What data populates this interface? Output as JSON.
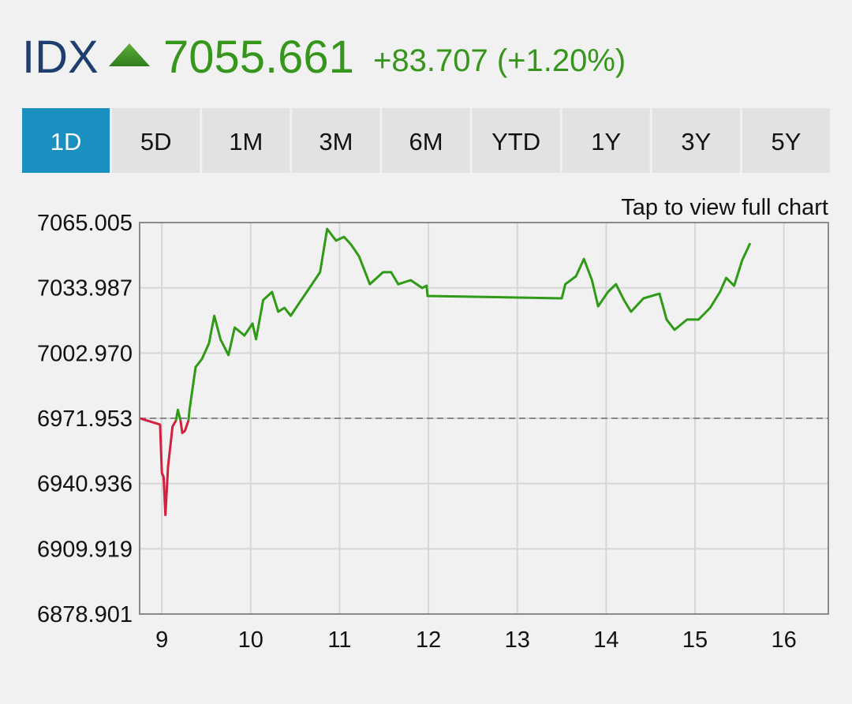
{
  "header": {
    "symbol": "IDX",
    "price": "7055.661",
    "change": "+83.707 (+1.20%)"
  },
  "tabs": {
    "items": [
      "1D",
      "5D",
      "1M",
      "3M",
      "6M",
      "YTD",
      "1Y",
      "3Y",
      "5Y"
    ],
    "active": 0
  },
  "link": "Tap to view full chart",
  "chart_data": {
    "type": "line",
    "xlim": [
      8.75,
      16.5
    ],
    "xticks": [
      9,
      10,
      11,
      12,
      13,
      14,
      15,
      16
    ],
    "ylim": [
      6878.901,
      7065.005
    ],
    "yticks": [
      6878.901,
      6909.919,
      6940.936,
      6971.953,
      {
        "value": 7002.97,
        "label": "7002.970"
      },
      7033.987,
      7065.005
    ],
    "grid": true,
    "reference_line": 6971.953,
    "series": [
      {
        "color": "#d0213f",
        "x": [
          8.75,
          8.98,
          9.0,
          9.02,
          9.04,
          9.07,
          9.12,
          9.16,
          9.18,
          9.21,
          9.23,
          9.26,
          9.3
        ],
        "values": [
          6972,
          6969,
          6946,
          6944,
          6926,
          6949,
          6968,
          6971,
          null,
          6971,
          6965,
          6966,
          6971
        ]
      },
      {
        "color": "#2f9a16",
        "x": [
          9.16,
          9.18,
          9.21,
          9.23,
          9.3,
          9.31,
          9.38,
          9.45,
          9.53,
          9.59,
          9.66,
          9.75,
          9.82,
          9.93,
          10.02,
          10.06,
          10.14,
          10.24,
          10.31,
          10.38,
          10.45,
          10.54,
          10.63,
          10.72,
          10.78,
          10.86,
          10.96,
          11.05,
          11.13,
          11.22,
          11.34,
          11.49,
          11.58,
          11.66,
          11.8,
          11.93,
          11.98,
          11.99,
          13.5,
          13.54,
          13.66,
          13.75,
          13.84,
          13.91,
          14.02,
          14.11,
          14.2,
          14.28,
          14.42,
          14.6,
          14.68,
          14.77,
          14.91,
          15.04,
          15.17,
          15.28,
          15.35,
          15.44,
          15.53,
          15.62
        ],
        "values": [
          6971,
          6976,
          6971,
          null,
          6971,
          6975.7,
          6996.3,
          7000.1,
          7007.6,
          7020.7,
          7009.5,
          7002.0,
          7015.1,
          7011.3,
          7017.0,
          7009.5,
          7028.2,
          7032.0,
          7022.6,
          7024.5,
          7020.7,
          7026.4,
          7032.0,
          7037.6,
          7041.4,
          7062.0,
          7056.4,
          7058.2,
          7054.5,
          7048.9,
          7035.7,
          7041.4,
          7041.4,
          7035.7,
          7037.6,
          7033.9,
          7035.0,
          7030.1,
          7029.0,
          7035.7,
          7039.5,
          7047.7,
          7037.6,
          7025.2,
          7032.0,
          7035.7,
          7028.2,
          7022.6,
          7029.0,
          7031.2,
          7018.9,
          7014.0,
          7018.9,
          7018.9,
          7024.5,
          7032.0,
          7038.7,
          7035.0,
          7047.0,
          7055.2
        ]
      }
    ]
  }
}
